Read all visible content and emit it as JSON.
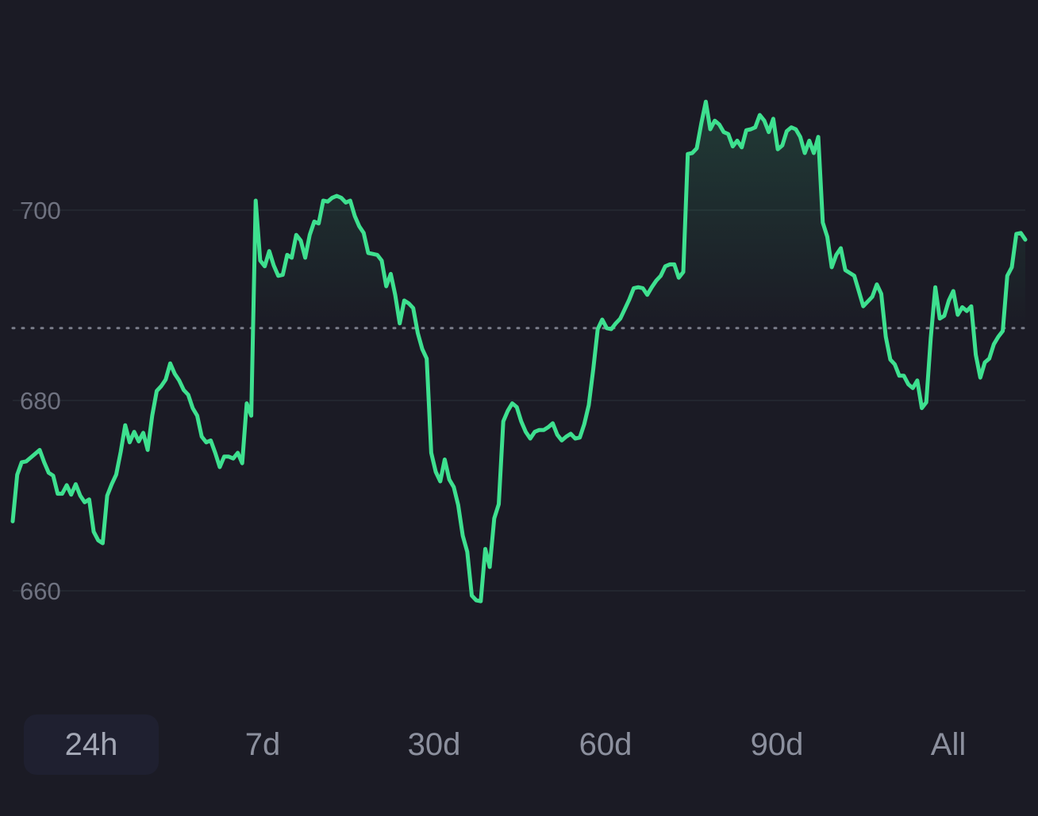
{
  "chart_data": {
    "type": "area",
    "title": "",
    "xlabel": "",
    "ylabel": "",
    "ylim": [
      650,
      720
    ],
    "yticks": [
      660,
      680,
      700
    ],
    "reference_line": 687.6,
    "grid": "faint horizontal lines",
    "line_color": "#3ee08f",
    "series": [
      {
        "values": [
          667.3,
          672.2,
          673.5,
          673.6,
          674.0,
          674.4,
          674.8,
          673.5,
          672.4,
          672.1,
          670.2,
          670.2,
          671.1,
          670.1,
          671.2,
          670.0,
          669.3,
          669.6,
          666.2,
          665.3,
          665.0,
          670.0,
          671.2,
          672.2,
          674.6,
          677.4,
          675.6,
          676.7,
          675.7,
          676.6,
          674.8,
          678.4,
          681.0,
          681.5,
          682.2,
          683.9,
          682.8,
          682.1,
          681.1,
          680.6,
          679.2,
          678.4,
          676.2,
          675.6,
          675.8,
          674.5,
          673.0,
          674.1,
          674.1,
          673.9,
          674.5,
          673.4,
          679.7,
          678.4,
          701.0,
          694.7,
          694.1,
          695.7,
          694.2,
          693.1,
          693.2,
          695.3,
          695.0,
          697.4,
          696.8,
          695.0,
          697.4,
          698.8,
          698.6,
          701.0,
          700.9,
          701.3,
          701.5,
          701.3,
          700.8,
          701.0,
          699.4,
          698.3,
          697.6,
          695.5,
          695.4,
          695.3,
          694.7,
          692.0,
          693.3,
          691.1,
          688.1,
          690.5,
          690.2,
          689.7,
          687.1,
          685.4,
          684.4,
          674.5,
          672.5,
          671.5,
          673.8,
          671.7,
          670.9,
          669.0,
          665.8,
          664.1,
          659.5,
          659.0,
          658.9,
          664.4,
          662.5,
          667.6,
          669.1,
          677.8,
          678.9,
          679.7,
          679.3,
          677.8,
          676.7,
          676.0,
          676.7,
          676.9,
          676.9,
          677.2,
          677.6,
          676.4,
          675.8,
          676.2,
          676.5,
          676.0,
          676.1,
          677.5,
          679.5,
          683.3,
          687.5,
          688.5,
          687.6,
          687.5,
          688.1,
          688.6,
          689.6,
          690.6,
          691.8,
          691.9,
          691.8,
          691.1,
          691.9,
          692.6,
          693.1,
          694.1,
          694.3,
          694.3,
          692.9,
          693.5,
          705.9,
          706.0,
          706.5,
          709.1,
          711.4,
          708.5,
          709.4,
          709.0,
          708.2,
          708.0,
          706.7,
          707.3,
          706.6,
          708.4,
          708.5,
          708.7,
          710.0,
          709.4,
          708.2,
          709.6,
          706.4,
          706.8,
          708.3,
          708.7,
          708.5,
          707.7,
          706.0,
          707.3,
          706.0,
          707.7,
          698.7,
          697.2,
          694.0,
          695.3,
          696.0,
          693.7,
          693.4,
          693.1,
          691.5,
          689.9,
          690.4,
          690.9,
          692.2,
          691.2,
          686.7,
          684.3,
          683.8,
          682.6,
          682.6,
          681.7,
          681.3,
          682.1,
          679.2,
          679.8,
          686.6,
          691.9,
          688.6,
          688.9,
          690.5,
          691.5,
          689.0,
          689.8,
          689.4,
          689.9,
          684.8,
          682.4,
          684.0,
          684.4,
          685.9,
          686.7,
          687.3,
          693.1,
          694.0,
          697.5,
          697.6,
          696.9
        ]
      }
    ]
  },
  "timeframes": [
    {
      "label": "24h",
      "active": true
    },
    {
      "label": "7d",
      "active": false
    },
    {
      "label": "30d",
      "active": false
    },
    {
      "label": "60d",
      "active": false
    },
    {
      "label": "90d",
      "active": false
    },
    {
      "label": "All",
      "active": false
    }
  ]
}
